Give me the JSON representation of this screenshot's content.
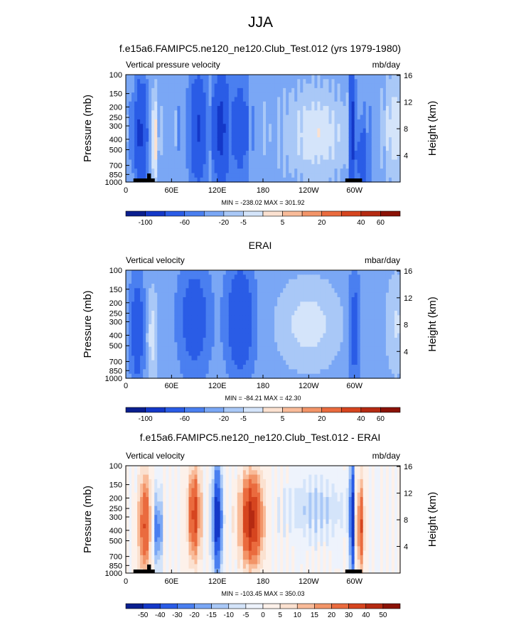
{
  "figure_title": "JJA",
  "chart_data": [
    {
      "type": "heatmap",
      "title": "f.e15a6.FAMIPC5.ne120_ne120.Club_Test.012 (yrs 1979-1980)",
      "left_label": "Vertical pressure velocity",
      "right_label": "mb/day",
      "ylabel": "Pressure (mb)",
      "y2label": "Height (km)",
      "yticks": [
        "100",
        "150",
        "200",
        "250",
        "300",
        "400",
        "500",
        "700",
        "850",
        "1000"
      ],
      "y2ticks": [
        "4",
        "8",
        "12",
        "16"
      ],
      "xticks": [
        "0",
        "60E",
        "120E",
        "180",
        "120W",
        "60W"
      ],
      "stats": "MIN = -238.02  MAX = 301.92",
      "colorbar_labels": [
        "-100",
        "-60",
        "-20",
        "-5",
        "5",
        "20",
        "40",
        "60"
      ],
      "colorbar_colors": [
        "#0a1f8f",
        "#1438c8",
        "#2a5ce6",
        "#4a7ff0",
        "#7aa7f5",
        "#a9c8f7",
        "#d4e4fa",
        "#fbe1d0",
        "#f9bb99",
        "#f29468",
        "#ea6b3e",
        "#d6451f",
        "#b52a12",
        "#8b1206"
      ]
    },
    {
      "type": "heatmap",
      "title": "ERAI",
      "left_label": "Vertical velocity",
      "right_label": "mbar/day",
      "ylabel": "Pressure (mb)",
      "y2label": "Height (km)",
      "yticks": [
        "100",
        "150",
        "200",
        "250",
        "300",
        "400",
        "500",
        "700",
        "850",
        "1000"
      ],
      "y2ticks": [
        "4",
        "8",
        "12",
        "16"
      ],
      "xticks": [
        "0",
        "60E",
        "120E",
        "180",
        "120W",
        "60W"
      ],
      "stats": "MIN = -84.21  MAX = 42.30",
      "colorbar_labels": [
        "-100",
        "-60",
        "-20",
        "-5",
        "5",
        "20",
        "40",
        "60"
      ],
      "colorbar_colors": [
        "#0a1f8f",
        "#1438c8",
        "#2a5ce6",
        "#4a7ff0",
        "#7aa7f5",
        "#a9c8f7",
        "#d4e4fa",
        "#fbe1d0",
        "#f9bb99",
        "#f29468",
        "#ea6b3e",
        "#d6451f",
        "#b52a12",
        "#8b1206"
      ]
    },
    {
      "type": "heatmap",
      "title": "f.e15a6.FAMIPC5.ne120_ne120.Club_Test.012 - ERAI",
      "left_label": "Vertical velocity",
      "right_label": "mb/day",
      "ylabel": "Pressure (mb)",
      "y2label": "Height (km)",
      "yticks": [
        "100",
        "150",
        "200",
        "250",
        "300",
        "400",
        "500",
        "700",
        "850",
        "1000"
      ],
      "y2ticks": [
        "4",
        "8",
        "12",
        "16"
      ],
      "xticks": [
        "0",
        "60E",
        "120E",
        "180",
        "120W",
        "60W"
      ],
      "stats": "MIN = -103.45  MAX = 350.03",
      "colorbar_labels": [
        "-50",
        "-40",
        "-30",
        "-20",
        "-15",
        "-10",
        "-5",
        "0",
        "5",
        "10",
        "15",
        "20",
        "30",
        "40",
        "50"
      ],
      "colorbar_colors": [
        "#0a1f8f",
        "#1438c8",
        "#2a5ce6",
        "#4a7ff0",
        "#7aa7f5",
        "#a9c8f7",
        "#d4e4fa",
        "#eef3fc",
        "#fdf1ea",
        "#fbe1d0",
        "#f9bb99",
        "#f29468",
        "#ea6b3e",
        "#d6451f",
        "#b52a12",
        "#8b1206"
      ]
    }
  ]
}
